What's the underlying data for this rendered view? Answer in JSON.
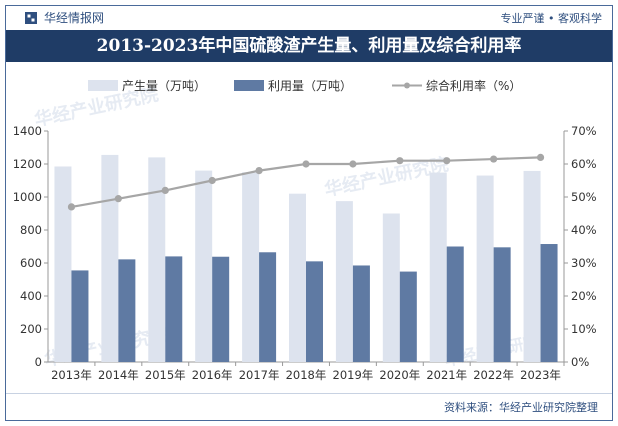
{
  "header": {
    "brand": "华经情报网",
    "slogan": "专业严谨 • 客观科学"
  },
  "title": "2013-2023年中国硫酸渣产生量、利用量及综合利用率",
  "source": "资料来源：华经产业研究院整理",
  "colors": {
    "produced": "#dde3ee",
    "utilized": "#5f7aa3",
    "rate": "#a6a6a6"
  },
  "chart_data": {
    "type": "bar+line",
    "categories": [
      "2013年",
      "2014年",
      "2015年",
      "2016年",
      "2017年",
      "2018年",
      "2019年",
      "2020年",
      "2021年",
      "2022年",
      "2023年"
    ],
    "series": [
      {
        "name": "产生量（万吨）",
        "type": "bar",
        "axis": "left",
        "values": [
          1185,
          1255,
          1240,
          1160,
          1150,
          1020,
          975,
          900,
          1148,
          1130,
          1158
        ]
      },
      {
        "name": "利用量（万吨）",
        "type": "bar",
        "axis": "left",
        "values": [
          555,
          622,
          640,
          638,
          665,
          610,
          585,
          548,
          700,
          695,
          715
        ]
      },
      {
        "name": "综合利用率（%）",
        "type": "line",
        "axis": "right",
        "values": [
          47,
          49.5,
          52,
          55,
          58,
          60,
          60,
          61,
          61,
          61.5,
          62
        ]
      }
    ],
    "yleft": {
      "min": 0,
      "max": 1400,
      "ticks": [
        "0",
        "200",
        "400",
        "600",
        "800",
        "1000",
        "1200",
        "1400"
      ]
    },
    "yright": {
      "min": 0,
      "max": 70,
      "ticks": [
        "0%",
        "10%",
        "20%",
        "30%",
        "40%",
        "50%",
        "60%",
        "70%"
      ]
    },
    "legend": [
      "产生量（万吨）",
      "利用量（万吨）",
      "综合利用率（%）"
    ]
  }
}
